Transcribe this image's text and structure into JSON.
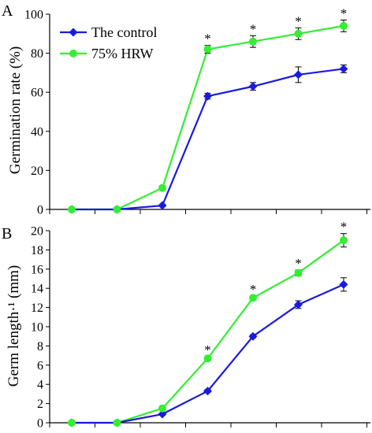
{
  "chart_data": [
    {
      "type": "line",
      "panel_letter": "A",
      "ylabel": "Germination  rate (%)",
      "ylim": [
        0,
        100
      ],
      "yticks": [
        0,
        20,
        40,
        60,
        80,
        100
      ],
      "x": [
        1,
        2,
        3,
        4,
        5,
        6,
        7
      ],
      "legend_position": "top-left",
      "grid": false,
      "series": [
        {
          "name": "The control",
          "color": "#1a1adf",
          "marker": "diamond",
          "values": [
            0,
            0,
            2,
            58,
            63,
            69,
            72
          ],
          "errors": [
            0,
            0,
            0.5,
            1.5,
            2,
            4,
            2
          ]
        },
        {
          "name": "75% HRW",
          "color": "#33ee33",
          "marker": "circle",
          "values": [
            0,
            0,
            11,
            82,
            86,
            90,
            94
          ],
          "errors": [
            0,
            0,
            1,
            2,
            3,
            3,
            3
          ]
        }
      ],
      "significance": [
        {
          "x": 4,
          "label": "*"
        },
        {
          "x": 5,
          "label": "*"
        },
        {
          "x": 6,
          "label": "*"
        },
        {
          "x": 7,
          "label": "*"
        }
      ]
    },
    {
      "type": "line",
      "panel_letter": "B",
      "ylabel": "Germ length·¹ (mm)",
      "ylim": [
        0,
        20
      ],
      "yticks": [
        0,
        2,
        4,
        6,
        8,
        10,
        12,
        14,
        16,
        18,
        20
      ],
      "x": [
        1,
        2,
        3,
        4,
        5,
        6,
        7
      ],
      "grid": false,
      "series": [
        {
          "name": "The control",
          "color": "#1a1adf",
          "marker": "diamond",
          "values": [
            0,
            0,
            0.9,
            3.3,
            9.0,
            12.3,
            14.4
          ],
          "errors": [
            0,
            0,
            0.1,
            0.15,
            0.15,
            0.4,
            0.7
          ]
        },
        {
          "name": "75% HRW",
          "color": "#33ee33",
          "marker": "circle",
          "values": [
            0,
            0,
            1.5,
            6.7,
            13.0,
            15.6,
            19.0
          ],
          "errors": [
            0,
            0,
            0.15,
            0.2,
            0.2,
            0.3,
            0.7
          ]
        }
      ],
      "significance": [
        {
          "x": 4,
          "label": "*"
        },
        {
          "x": 5,
          "label": "*"
        },
        {
          "x": 6,
          "label": "*"
        },
        {
          "x": 7,
          "label": "*"
        }
      ]
    }
  ]
}
